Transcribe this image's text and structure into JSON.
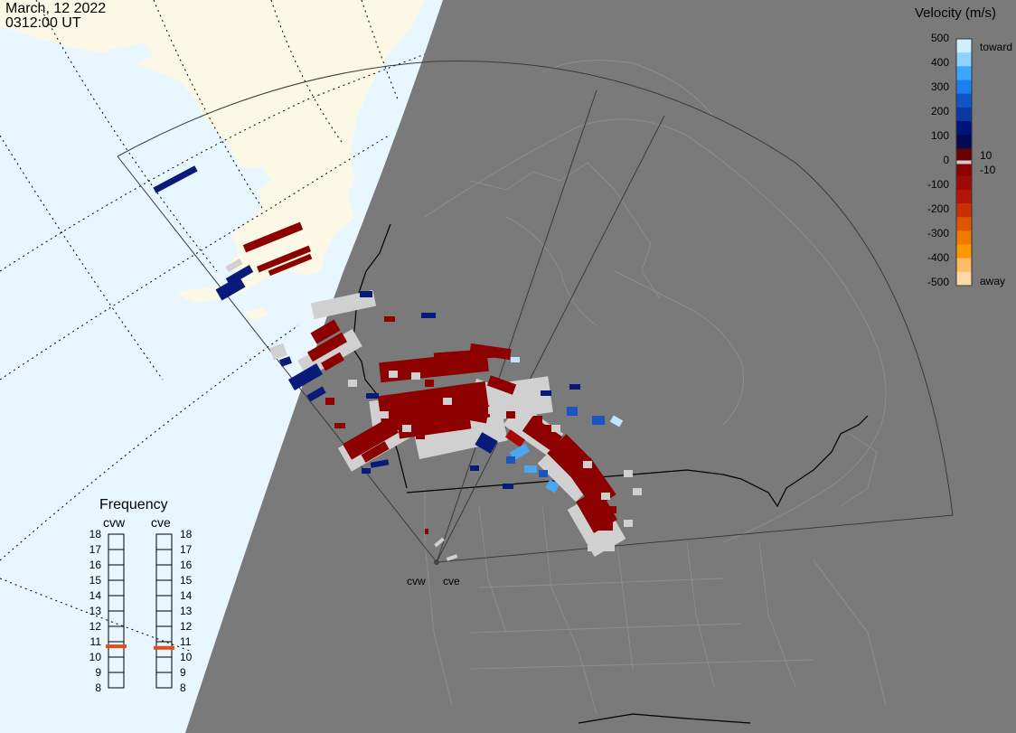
{
  "header": {
    "date": "March, 12 2022",
    "time": "0312:00 UT"
  },
  "velocity_legend": {
    "title": "Velocity (m/s)",
    "ticks": [
      "500",
      "400",
      "300",
      "200",
      "100",
      "0",
      "-100",
      "-200",
      "-300",
      "-400",
      "-500"
    ],
    "toward_label": "toward",
    "away_label": "away",
    "threshold_pos_label": "10",
    "threshold_neg_label": "-10",
    "colors": [
      "#cfeeff",
      "#8fd2ff",
      "#3aa8ff",
      "#1a80ef",
      "#0e55c9",
      "#083aa0",
      "#00137a",
      "#050a55",
      "#6b0000",
      "#8c0000",
      "#a00808",
      "#b4140a",
      "#c83000",
      "#e05500",
      "#f07a00",
      "#ff9800",
      "#ffbb66",
      "#ffd8a8"
    ]
  },
  "frequency_panel": {
    "title": "Frequency",
    "radars": [
      {
        "name": "cvw",
        "value": 10.7
      },
      {
        "name": "cve",
        "value": 10.6
      }
    ],
    "scale": [
      "18",
      "17",
      "16",
      "15",
      "14",
      "13",
      "12",
      "11",
      "10",
      "9",
      "8"
    ],
    "marker_color": "#e84c1a"
  },
  "map": {
    "day_color": "#e8f6ff",
    "night_color": "#7a7a7a",
    "land_day_color": "#fbf8e6",
    "radar_sites": [
      {
        "name": "cvw"
      },
      {
        "name": "cve"
      }
    ],
    "ground_scatter_color": "#d0d0d0"
  }
}
